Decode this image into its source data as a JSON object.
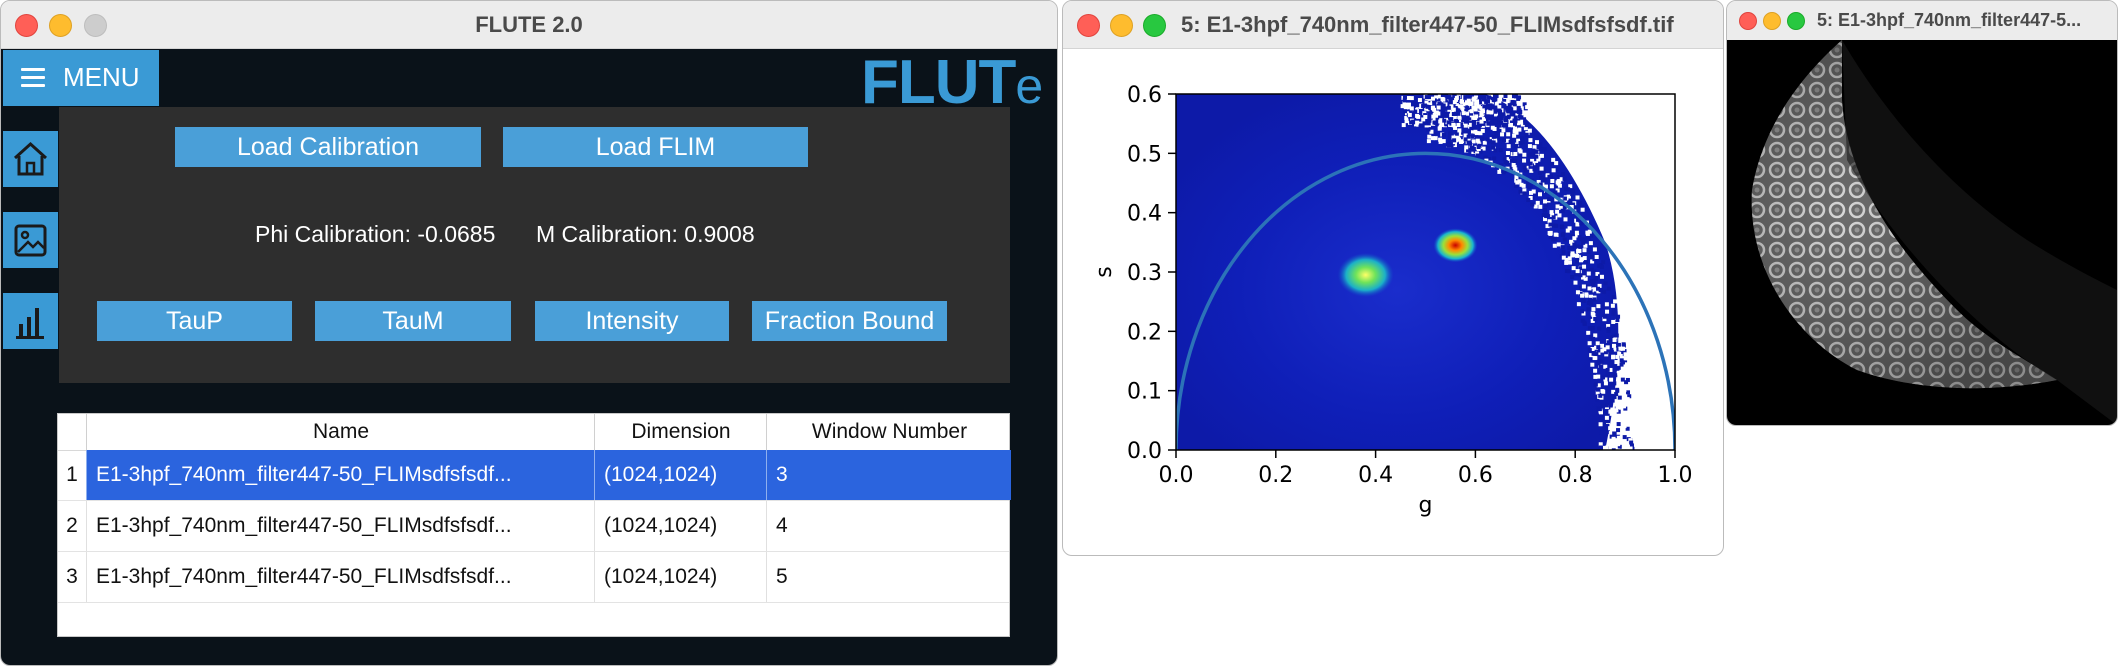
{
  "flute": {
    "title": "FLUTE 2.0",
    "menu_label": "MENU",
    "logo_main": "FLUT",
    "logo_suffix": "e",
    "buttons": {
      "load_calibration": "Load Calibration",
      "load_flim": "Load FLIM",
      "taup": "TauP",
      "taum": "TauM",
      "intensity": "Intensity",
      "fraction_bound": "Fraction Bound"
    },
    "phi_calibration": "Phi Calibration: -0.0685",
    "m_calibration": "M Calibration: 0.9008",
    "sidebar_icons": [
      "home-icon",
      "image-icon",
      "bar-chart-icon"
    ],
    "table": {
      "headers": [
        "Name",
        "Dimension",
        "Window Number"
      ],
      "rows": [
        {
          "num": "1",
          "name": "E1-3hpf_740nm_filter447-50_FLIMsdfsfsdf...",
          "dimension": "(1024,1024)",
          "window": "3",
          "selected": true
        },
        {
          "num": "2",
          "name": "E1-3hpf_740nm_filter447-50_FLIMsdfsfsdf...",
          "dimension": "(1024,1024)",
          "window": "4",
          "selected": false
        },
        {
          "num": "3",
          "name": "E1-3hpf_740nm_filter447-50_FLIMsdfsfsdf...",
          "dimension": "(1024,1024)",
          "window": "5",
          "selected": false
        }
      ]
    }
  },
  "phasor_window": {
    "title": "5: E1-3hpf_740nm_filter447-50_FLIMsdfsfsdf.tif"
  },
  "image_window": {
    "title": "5: E1-3hpf_740nm_filter447-5..."
  },
  "colors": {
    "accent": "#3a9ad5",
    "panel": "#2e2e2e",
    "background": "#0a1219",
    "selection": "#2b64de",
    "semicircle": "#2c73b8"
  },
  "chart_data": {
    "type": "heatmap",
    "title": "",
    "xlabel": "g",
    "ylabel": "s",
    "xlim": [
      0.0,
      1.0
    ],
    "ylim": [
      0.0,
      0.6
    ],
    "xticks": [
      "0.0",
      "0.2",
      "0.4",
      "0.6",
      "0.8",
      "1.0"
    ],
    "yticks": [
      "0.0",
      "0.1",
      "0.2",
      "0.3",
      "0.4",
      "0.5",
      "0.6"
    ],
    "hotspots": [
      {
        "g": 0.38,
        "s": 0.295
      },
      {
        "g": 0.56,
        "s": 0.345
      }
    ],
    "reference_curve": "universal semicircle (center g=0.5, radius 0.5)",
    "grid": false
  }
}
